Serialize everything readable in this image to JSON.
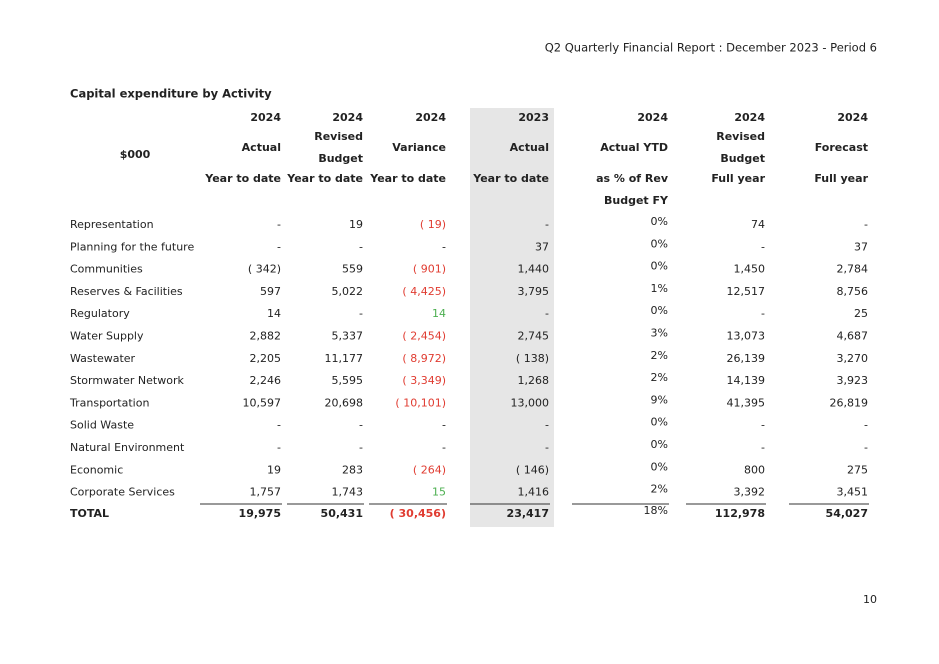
{
  "header": {
    "report_title": "Q2 Quarterly Financial Report : December 2023 - Period 6"
  },
  "section_title": "Capital expenditure by Activity",
  "table": {
    "stub_header": "$000",
    "columns": [
      {
        "lines": [
          "2024",
          "Actual",
          "Year to date"
        ]
      },
      {
        "lines": [
          "2024",
          "Revised",
          "Budget",
          "Year to date"
        ]
      },
      {
        "lines": [
          "2024",
          "Variance",
          "Year to date"
        ]
      },
      {
        "lines": [
          "2023",
          "Actual",
          "Year to date"
        ]
      },
      {
        "lines": [
          "2024",
          "Actual YTD",
          "as % of Rev",
          "Budget FY"
        ]
      },
      {
        "lines": [
          "2024",
          "Revised",
          "Budget",
          "Full year"
        ]
      },
      {
        "lines": [
          "2024",
          "Forecast",
          "Full year"
        ]
      }
    ],
    "rows": [
      {
        "label": "Representation",
        "cells": [
          "-",
          "19",
          "( 19)",
          "-",
          "0%",
          "74",
          "-"
        ]
      },
      {
        "label": "Planning for the future",
        "cells": [
          "-",
          "-",
          "-",
          "37",
          "0%",
          "-",
          "37"
        ]
      },
      {
        "label": "Communities",
        "cells": [
          "( 342)",
          "559",
          "( 901)",
          "1,440",
          "0%",
          "1,450",
          "2,784"
        ]
      },
      {
        "label": "Reserves & Facilities",
        "cells": [
          "597",
          "5,022",
          "( 4,425)",
          "3,795",
          "1%",
          "12,517",
          "8,756"
        ]
      },
      {
        "label": "Regulatory",
        "cells": [
          "14",
          "-",
          "14",
          "-",
          "0%",
          "-",
          "25"
        ]
      },
      {
        "label": "Water Supply",
        "cells": [
          "2,882",
          "5,337",
          "( 2,454)",
          "2,745",
          "3%",
          "13,073",
          "4,687"
        ]
      },
      {
        "label": "Wastewater",
        "cells": [
          "2,205",
          "11,177",
          "( 8,972)",
          "( 138)",
          "2%",
          "26,139",
          "3,270"
        ]
      },
      {
        "label": "Stormwater Network",
        "cells": [
          "2,246",
          "5,595",
          "( 3,349)",
          "1,268",
          "2%",
          "14,139",
          "3,923"
        ]
      },
      {
        "label": "Transportation",
        "cells": [
          "10,597",
          "20,698",
          "( 10,101)",
          "13,000",
          "9%",
          "41,395",
          "26,819"
        ]
      },
      {
        "label": "Solid Waste",
        "cells": [
          "-",
          "-",
          "-",
          "-",
          "0%",
          "-",
          "-"
        ]
      },
      {
        "label": "Natural Environment",
        "cells": [
          "-",
          "-",
          "-",
          "-",
          "0%",
          "-",
          "-"
        ]
      },
      {
        "label": "Economic",
        "cells": [
          "19",
          "283",
          "( 264)",
          "( 146)",
          "0%",
          "800",
          "275"
        ]
      },
      {
        "label": "Corporate Services",
        "cells": [
          "1,757",
          "1,743",
          "15",
          "1,416",
          "2%",
          "3,392",
          "3,451"
        ]
      }
    ],
    "total": {
      "label": "TOTAL",
      "cells": [
        "19,975",
        "50,431",
        "( 30,456)",
        "23,417",
        "18%",
        "112,978",
        "54,027"
      ]
    }
  },
  "footer": {
    "page_number": "10"
  }
}
